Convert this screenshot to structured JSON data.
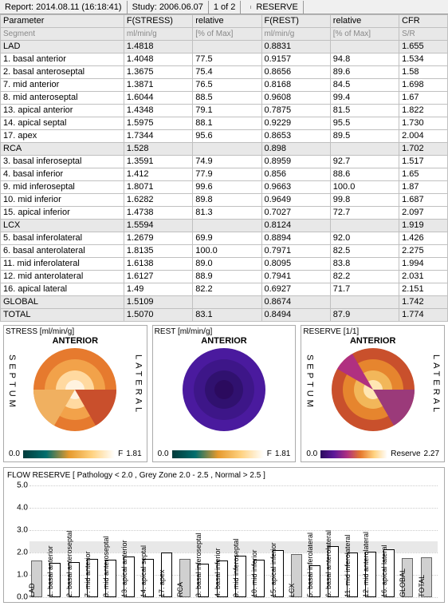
{
  "header": {
    "report": "Report: 2014.08.11 (16:18:41)",
    "study": "Study: 2006.06.07",
    "page": "1 of 2",
    "mode": "RESERVE"
  },
  "table": {
    "head1": [
      "Parameter",
      "F(STRESS)",
      "relative",
      "F(REST)",
      "relative",
      "CFR"
    ],
    "head2": [
      "Segment",
      "ml/min/g",
      "[% of Max]",
      "ml/min/g",
      "[% of Max]",
      "S/R"
    ],
    "rows": [
      {
        "g": 1,
        "c": [
          "LAD",
          "1.4818",
          "",
          "0.8831",
          "",
          "1.655"
        ]
      },
      {
        "c": [
          "  1. basal anterior",
          "1.4048",
          "77.5",
          "0.9157",
          "94.8",
          "1.534"
        ]
      },
      {
        "c": [
          "  2. basal anteroseptal",
          "1.3675",
          "75.4",
          "0.8656",
          "89.6",
          "1.58"
        ]
      },
      {
        "c": [
          "  7. mid anterior",
          "1.3871",
          "76.5",
          "0.8168",
          "84.5",
          "1.698"
        ]
      },
      {
        "c": [
          "  8. mid anteroseptal",
          "1.6044",
          "88.5",
          "0.9608",
          "99.4",
          "1.67"
        ]
      },
      {
        "c": [
          " 13. apical anterior",
          "1.4348",
          "79.1",
          "0.7875",
          "81.5",
          "1.822"
        ]
      },
      {
        "c": [
          " 14. apical septal",
          "1.5975",
          "88.1",
          "0.9229",
          "95.5",
          "1.730"
        ]
      },
      {
        "c": [
          " 17. apex",
          "1.7344",
          "95.6",
          "0.8653",
          "89.5",
          "2.004"
        ]
      },
      {
        "g": 1,
        "c": [
          "RCA",
          "1.528",
          "",
          "0.898",
          "",
          "1.702"
        ]
      },
      {
        "c": [
          "  3. basal inferoseptal",
          "1.3591",
          "74.9",
          "0.8959",
          "92.7",
          "1.517"
        ]
      },
      {
        "c": [
          "  4. basal inferior",
          "1.412",
          "77.9",
          "0.856",
          "88.6",
          "1.65"
        ]
      },
      {
        "c": [
          "  9. mid inferoseptal",
          "1.8071",
          "99.6",
          "0.9663",
          "100.0",
          "1.87"
        ]
      },
      {
        "c": [
          " 10. mid inferior",
          "1.6282",
          "89.8",
          "0.9649",
          "99.8",
          "1.687"
        ]
      },
      {
        "c": [
          " 15. apical inferior",
          "1.4738",
          "81.3",
          "0.7027",
          "72.7",
          "2.097"
        ]
      },
      {
        "g": 1,
        "c": [
          "LCX",
          "1.5594",
          "",
          "0.8124",
          "",
          "1.919"
        ]
      },
      {
        "c": [
          "  5. basal inferolateral",
          "1.2679",
          "69.9",
          "0.8894",
          "92.0",
          "1.426"
        ]
      },
      {
        "c": [
          "  6. basal anterolateral",
          "1.8135",
          "100.0",
          "0.7971",
          "82.5",
          "2.275"
        ]
      },
      {
        "c": [
          " 11. mid inferolateral",
          "1.6138",
          "89.0",
          "0.8095",
          "83.8",
          "1.994"
        ]
      },
      {
        "c": [
          " 12. mid anterolateral",
          "1.6127",
          "88.9",
          "0.7941",
          "82.2",
          "2.031"
        ]
      },
      {
        "c": [
          " 16. apical lateral",
          "1.49",
          "82.2",
          "0.6927",
          "71.7",
          "2.151"
        ]
      },
      {
        "g": 1,
        "c": [
          "GLOBAL",
          "1.5109",
          "",
          "0.8674",
          "",
          "1.742"
        ]
      },
      {
        "g": 1,
        "c": [
          "TOTAL",
          "1.5070",
          "83.1",
          "0.8494",
          "87.9",
          "1.774"
        ]
      }
    ]
  },
  "polar": {
    "stress": {
      "title": "STRESS [ml/min/g]",
      "min": "0.0",
      "max": "1.81",
      "label": "F",
      "grad": "linear-gradient(to right,#003b3b,#006e6e,#e69a2e,#ffd280,#ffffff)"
    },
    "rest": {
      "title": "REST [ml/min/g]",
      "min": "0.0",
      "max": "1.81",
      "label": "F",
      "grad": "linear-gradient(to right,#003b3b,#006e6e,#e69a2e,#ffd280,#ffffff)"
    },
    "reserve": {
      "title": "RESERVE [1/1]",
      "min": "0.0",
      "max": "2.27",
      "label": "Reserve",
      "grad": "linear-gradient(to right,#2b0a5e,#5b1799,#b03080,#e67a2e,#ffd280,#ffffff)"
    },
    "top": "ANTERIOR",
    "left": "SEPTUM",
    "right": "LATERAL"
  },
  "barchart": {
    "title": "FLOW RESERVE [ Pathology < 2.0 , Grey Zone 2.0 - 2.5 , Normal > 2.5 ]",
    "ymax": 5.0,
    "ystep": 1.0,
    "grey_low": 2.0,
    "grey_high": 2.5,
    "bar_fill": "#ffffff",
    "bar_border": "#000000",
    "group_fill": "#d0d0d0",
    "bars": [
      {
        "l": "LAD",
        "v": 1.655,
        "g": 1
      },
      {
        "l": "1. basal anterior",
        "v": 1.534
      },
      {
        "l": "2. basal anteroseptal",
        "v": 1.58
      },
      {
        "l": "7. mid anterior",
        "v": 1.698
      },
      {
        "l": "8. mid anteroseptal",
        "v": 1.67
      },
      {
        "l": "13. apical anterior",
        "v": 1.822
      },
      {
        "l": "14. apical septal",
        "v": 1.73
      },
      {
        "l": "17. apex",
        "v": 2.004
      },
      {
        "l": "RCA",
        "v": 1.702,
        "g": 1
      },
      {
        "l": "3. basal inferoseptal",
        "v": 1.517
      },
      {
        "l": "4. basal inferior",
        "v": 1.65
      },
      {
        "l": "9. mid inferoseptal",
        "v": 1.87
      },
      {
        "l": "10. mid inferior",
        "v": 1.687
      },
      {
        "l": "15. apical inferior",
        "v": 2.097
      },
      {
        "l": "LCX",
        "v": 1.919,
        "g": 1
      },
      {
        "l": "5. basal inferolateral",
        "v": 1.426
      },
      {
        "l": "6. basal anterolateral",
        "v": 2.275
      },
      {
        "l": "11. mid inferolateral",
        "v": 1.994
      },
      {
        "l": "12. mid anterolateral",
        "v": 2.031
      },
      {
        "l": "16. apical lateral",
        "v": 2.151
      },
      {
        "l": "GLOBAL",
        "v": 1.742,
        "g": 1
      },
      {
        "l": "TOTAL",
        "v": 1.774,
        "g": 1
      }
    ]
  },
  "colors": {
    "header_bg": "#f0f0f0",
    "group_bg": "#e8e8e8",
    "border": "#c0c0c0"
  }
}
